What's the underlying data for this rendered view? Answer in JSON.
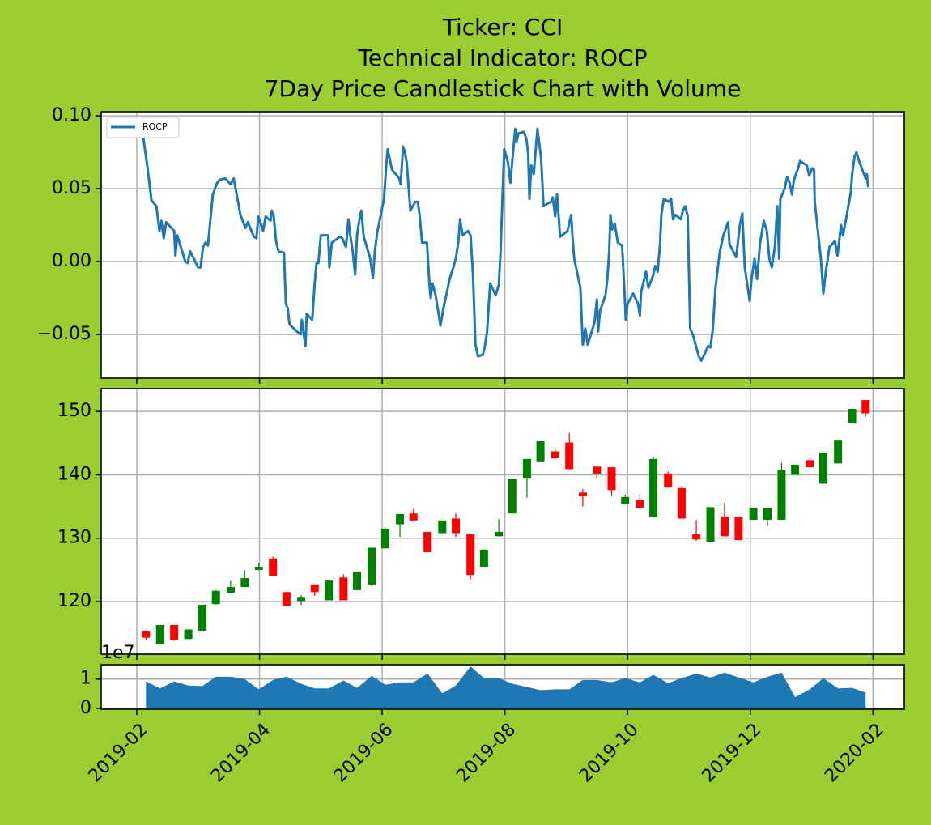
{
  "chart_data": [
    {
      "type": "line",
      "title": [
        "Ticker: CCI",
        "Technical Indicator: ROCP",
        "7Day Price Candlestick Chart with Volume"
      ],
      "xlim": [
        0.42,
        13.51
      ],
      "ylim": [
        -0.08,
        0.1028
      ],
      "yticks": [
        {
          "value": -0.05,
          "label": "−0.05"
        },
        {
          "value": 0,
          "label": "0.00"
        },
        {
          "value": 0.05,
          "label": "0.05"
        },
        {
          "value": 0.1,
          "label": "0.10"
        }
      ],
      "grid": true,
      "legend": "upper left",
      "series": [
        {
          "name": "ROCP",
          "color": "#1f77b4",
          "x": [
            1.08,
            1.17,
            1.24,
            1.32,
            1.37,
            1.4,
            1.44,
            1.48,
            1.61,
            1.63,
            1.66,
            1.79,
            1.83,
            1.87,
            2.0,
            2.04,
            2.08,
            2.12,
            2.16,
            2.24,
            2.31,
            2.35,
            2.44,
            2.53,
            2.58,
            2.69,
            2.77,
            2.81,
            2.91,
            2.95,
            2.98,
            3.06,
            3.1,
            3.18,
            3.2,
            3.23,
            3.27,
            3.31,
            3.4,
            3.43,
            3.46,
            3.49,
            3.61,
            3.67,
            3.69,
            3.75,
            3.77,
            3.86,
            3.9,
            3.93,
            3.96,
            4.0,
            4.12,
            4.14,
            4.18,
            4.31,
            4.35,
            4.41,
            4.45,
            4.48,
            4.52,
            4.56,
            4.59,
            4.63,
            4.66,
            4.7,
            4.8,
            4.85,
            4.88,
            4.92,
            5.03,
            5.07,
            5.09,
            5.12,
            5.16,
            5.28,
            5.3,
            5.33,
            5.34,
            5.37,
            5.4,
            5.44,
            5.46,
            5.54,
            5.58,
            5.61,
            5.65,
            5.73,
            5.77,
            5.79,
            5.82,
            5.87,
            5.95,
            5.99,
            6.1,
            6.16,
            6.2,
            6.24,
            6.27,
            6.31,
            6.4,
            6.44,
            6.48,
            6.52,
            6.56,
            6.64,
            6.67,
            6.71,
            6.76,
            6.85,
            6.9,
            6.93,
            6.96,
            6.99,
            7.05,
            7.09,
            7.14,
            7.17,
            7.19,
            7.22,
            7.31,
            7.35,
            7.38,
            7.4,
            7.43,
            7.47,
            7.53,
            7.59,
            7.63,
            7.75,
            7.78,
            7.82,
            7.85,
            7.9,
            8.02,
            8.08,
            8.1,
            8.13,
            8.23,
            8.27,
            8.31,
            8.35,
            8.46,
            8.5,
            8.52,
            8.55,
            8.64,
            8.67,
            8.7,
            8.72,
            8.75,
            8.79,
            8.84,
            8.91,
            8.95,
            8.97,
            9.0,
            9.09,
            9.17,
            9.2,
            9.22,
            9.3,
            9.34,
            9.42,
            9.45,
            9.49,
            9.53,
            9.55,
            9.59,
            9.67,
            9.71,
            9.74,
            9.78,
            9.87,
            9.9,
            9.94,
            9.98,
            10.02,
            10.07,
            10.16,
            10.2,
            10.25,
            10.31,
            10.35,
            10.39,
            10.43,
            10.5,
            10.56,
            10.64,
            10.66,
            10.77,
            10.83,
            10.87,
            10.91,
            10.99,
            11.02,
            11.07,
            11.11,
            11.16,
            11.22,
            11.27,
            11.31,
            11.35,
            11.4,
            11.44,
            11.47,
            11.49,
            11.56,
            11.6,
            11.64,
            11.68,
            11.71,
            11.78,
            11.81,
            11.92,
            11.96,
            12.01,
            12.04,
            12.05,
            12.15,
            12.19,
            12.23,
            12.29,
            12.38,
            12.42,
            12.48,
            12.51,
            12.56,
            12.64,
            12.66,
            12.7,
            12.73,
            12.78,
            12.88,
            12.9,
            12.92
          ],
          "values": [
            0.093,
            0.066,
            0.042,
            0.038,
            0.021,
            0.028,
            0.016,
            0.027,
            0.021,
            0.004,
            0.018,
            0.0,
            -0.001,
            0.007,
            -0.004,
            -0.004,
            0.01,
            0.013,
            0.011,
            0.046,
            0.054,
            0.056,
            0.057,
            0.053,
            0.057,
            0.032,
            0.023,
            0.027,
            0.017,
            0.016,
            0.031,
            0.021,
            0.031,
            0.028,
            0.035,
            0.032,
            0.014,
            0.007,
            0.006,
            -0.029,
            -0.032,
            -0.043,
            -0.048,
            -0.05,
            -0.04,
            -0.058,
            -0.036,
            -0.04,
            -0.015,
            -0.001,
            -0.001,
            0.018,
            0.018,
            -0.004,
            0.013,
            0.017,
            0.016,
            0.01,
            0.029,
            0.018,
            0.007,
            -0.009,
            0.018,
            0.029,
            0.035,
            0.017,
            0.003,
            -0.011,
            0.007,
            0.02,
            0.043,
            0.068,
            0.077,
            0.071,
            0.063,
            0.057,
            0.053,
            0.071,
            0.079,
            0.075,
            0.068,
            0.046,
            0.035,
            0.041,
            0.041,
            0.032,
            0.013,
            0.013,
            -0.015,
            -0.025,
            -0.015,
            -0.023,
            -0.044,
            -0.034,
            -0.012,
            -0.004,
            0.002,
            0.013,
            0.029,
            0.018,
            0.021,
            0.018,
            -0.009,
            -0.057,
            -0.065,
            -0.064,
            -0.059,
            -0.048,
            -0.015,
            -0.023,
            -0.016,
            0.007,
            0.043,
            0.077,
            0.068,
            0.054,
            0.078,
            0.091,
            0.082,
            0.088,
            0.089,
            0.084,
            0.074,
            0.043,
            0.066,
            0.06,
            0.091,
            0.071,
            0.038,
            0.041,
            0.044,
            0.031,
            0.046,
            0.017,
            0.021,
            0.032,
            0.018,
            0.002,
            -0.018,
            -0.057,
            -0.046,
            -0.057,
            -0.042,
            -0.026,
            -0.048,
            -0.034,
            -0.023,
            -0.012,
            0.007,
            0.032,
            0.022,
            0.026,
            0.013,
            0.011,
            -0.021,
            -0.04,
            -0.029,
            -0.022,
            -0.029,
            -0.037,
            -0.021,
            -0.007,
            -0.018,
            -0.009,
            -0.003,
            -0.007,
            0.013,
            0.032,
            0.043,
            0.041,
            0.043,
            0.029,
            0.032,
            0.029,
            0.035,
            0.038,
            0.031,
            -0.046,
            -0.051,
            -0.065,
            -0.068,
            -0.064,
            -0.058,
            -0.059,
            -0.046,
            -0.019,
            0.006,
            0.018,
            0.027,
            0.012,
            0.003,
            0.025,
            0.033,
            -0.004,
            -0.027,
            -0.012,
            0.002,
            -0.012,
            0.013,
            0.028,
            0.021,
            0.002,
            -0.004,
            0.01,
            0.038,
            0.002,
            0.043,
            0.05,
            0.058,
            0.054,
            0.046,
            0.056,
            0.064,
            0.069,
            0.066,
            0.059,
            0.064,
            0.063,
            0.041,
            0.002,
            -0.022,
            -0.007,
            0.01,
            0.014,
            0.004,
            0.025,
            0.018,
            0.029,
            0.048,
            0.06,
            0.072,
            0.075,
            0.068,
            0.057,
            0.06,
            0.051
          ]
        }
      ]
    },
    {
      "type": "candlestick",
      "xlim": [
        0.42,
        13.51
      ],
      "ylim": [
        111.7,
        153.6
      ],
      "yticks": [
        120,
        130,
        140,
        150
      ],
      "grid": true,
      "up_color": "green",
      "down_color": "red",
      "x": [
        1.15,
        1.38,
        1.61,
        1.84,
        2.07,
        2.29,
        2.53,
        2.76,
        2.99,
        3.22,
        3.44,
        3.68,
        3.9,
        4.13,
        4.37,
        4.59,
        4.83,
        5.05,
        5.29,
        5.51,
        5.74,
        5.98,
        6.2,
        6.44,
        6.66,
        6.9,
        7.12,
        7.36,
        7.58,
        7.82,
        8.05,
        8.27,
        8.5,
        8.74,
        8.96,
        9.2,
        9.42,
        9.66,
        9.88,
        10.12,
        10.35,
        10.58,
        10.81,
        11.05,
        11.28,
        11.51,
        11.73,
        11.97,
        12.19,
        12.43,
        12.66,
        12.88
      ],
      "open": [
        115.4,
        113.3,
        116.3,
        114.1,
        115.4,
        119.6,
        121.4,
        122.3,
        125.0,
        126.8,
        121.5,
        120.1,
        122.7,
        120.2,
        123.8,
        121.8,
        122.7,
        128.4,
        132.2,
        133.9,
        131.0,
        130.8,
        133.1,
        130.6,
        125.5,
        130.3,
        133.9,
        139.4,
        142.0,
        143.7,
        145.1,
        137.2,
        141.3,
        141.2,
        135.4,
        136.0,
        133.4,
        140.2,
        137.9,
        130.6,
        129.4,
        133.4,
        133.4,
        132.9,
        132.9,
        132.9,
        140.0,
        142.3,
        138.6,
        141.8,
        148.1,
        151.8
      ],
      "high": [
        115.5,
        116.3,
        116.3,
        115.6,
        119.5,
        121.8,
        123.3,
        124.9,
        126.0,
        127.1,
        121.5,
        121.0,
        122.7,
        123.3,
        124.3,
        124.7,
        128.5,
        131.7,
        133.8,
        134.6,
        131.0,
        132.8,
        133.9,
        130.6,
        128.2,
        133.0,
        139.3,
        142.5,
        145.3,
        144.0,
        146.6,
        137.8,
        141.3,
        141.2,
        136.9,
        136.9,
        142.9,
        140.5,
        138.2,
        132.9,
        134.9,
        135.6,
        133.4,
        134.8,
        134.8,
        141.9,
        141.6,
        142.6,
        143.5,
        145.4,
        150.4,
        151.8
      ],
      "low": [
        113.9,
        113.3,
        113.8,
        114.1,
        115.4,
        119.5,
        121.3,
        122.3,
        124.9,
        124.0,
        119.3,
        119.5,
        120.9,
        120.2,
        120.2,
        121.8,
        122.4,
        128.4,
        130.2,
        132.8,
        127.8,
        130.8,
        130.2,
        123.5,
        125.5,
        130.3,
        133.9,
        136.4,
        142.0,
        142.6,
        140.9,
        135.0,
        139.3,
        136.6,
        135.4,
        134.8,
        133.4,
        138.0,
        133.1,
        129.6,
        129.4,
        130.3,
        129.7,
        132.9,
        131.9,
        132.9,
        140.0,
        141.2,
        138.6,
        141.8,
        148.1,
        149.2
      ],
      "close": [
        114.3,
        116.3,
        114.0,
        115.6,
        119.5,
        121.7,
        122.3,
        123.7,
        125.5,
        124.0,
        119.3,
        120.6,
        121.5,
        123.3,
        120.2,
        124.7,
        128.5,
        131.5,
        133.8,
        132.8,
        127.8,
        132.8,
        130.8,
        124.2,
        128.2,
        131.0,
        139.3,
        142.5,
        145.3,
        142.6,
        140.9,
        136.6,
        140.2,
        137.6,
        136.5,
        134.8,
        142.5,
        138.0,
        133.1,
        129.8,
        134.9,
        130.3,
        129.7,
        134.8,
        134.8,
        140.7,
        141.6,
        141.2,
        143.5,
        145.4,
        150.4,
        149.7
      ]
    },
    {
      "type": "area",
      "xlim": [
        0.42,
        13.51
      ],
      "ylim": [
        -0.03,
        1.49
      ],
      "yticks": [
        0,
        1
      ],
      "offset_label": "1e7",
      "grid": true,
      "color": "#1f77b4",
      "xticks": [
        {
          "value": 1,
          "label": "2019-02"
        },
        {
          "value": 3,
          "label": "2019-04"
        },
        {
          "value": 5,
          "label": "2019-06"
        },
        {
          "value": 7,
          "label": "2019-08"
        },
        {
          "value": 9,
          "label": "2019-10"
        },
        {
          "value": 11,
          "label": "2019-12"
        },
        {
          "value": 13,
          "label": "2020-02"
        }
      ],
      "x": [
        1.15,
        1.38,
        1.61,
        1.84,
        2.07,
        2.29,
        2.53,
        2.76,
        2.99,
        3.22,
        3.44,
        3.68,
        3.9,
        4.13,
        4.37,
        4.59,
        4.83,
        5.05,
        5.29,
        5.51,
        5.74,
        5.98,
        6.2,
        6.44,
        6.66,
        6.9,
        7.12,
        7.36,
        7.58,
        7.82,
        8.05,
        8.27,
        8.5,
        8.74,
        8.96,
        9.2,
        9.42,
        9.66,
        9.88,
        10.12,
        10.35,
        10.58,
        10.81,
        11.05,
        11.28,
        11.51,
        11.73,
        11.97,
        12.19,
        12.43,
        12.66,
        12.88
      ],
      "values": [
        0.92,
        0.68,
        0.92,
        0.78,
        0.76,
        1.08,
        1.08,
        1.0,
        0.65,
        0.97,
        1.08,
        0.84,
        0.68,
        0.68,
        0.95,
        0.7,
        1.11,
        0.81,
        0.89,
        0.89,
        1.19,
        0.51,
        0.78,
        1.43,
        1.03,
        1.03,
        0.84,
        0.73,
        0.62,
        0.65,
        0.65,
        0.97,
        0.97,
        0.89,
        1.03,
        0.89,
        1.14,
        0.86,
        1.03,
        1.19,
        1.05,
        1.22,
        1.05,
        0.89,
        1.08,
        1.22,
        0.38,
        0.65,
        1.03,
        0.68,
        0.7,
        0.54
      ]
    }
  ]
}
